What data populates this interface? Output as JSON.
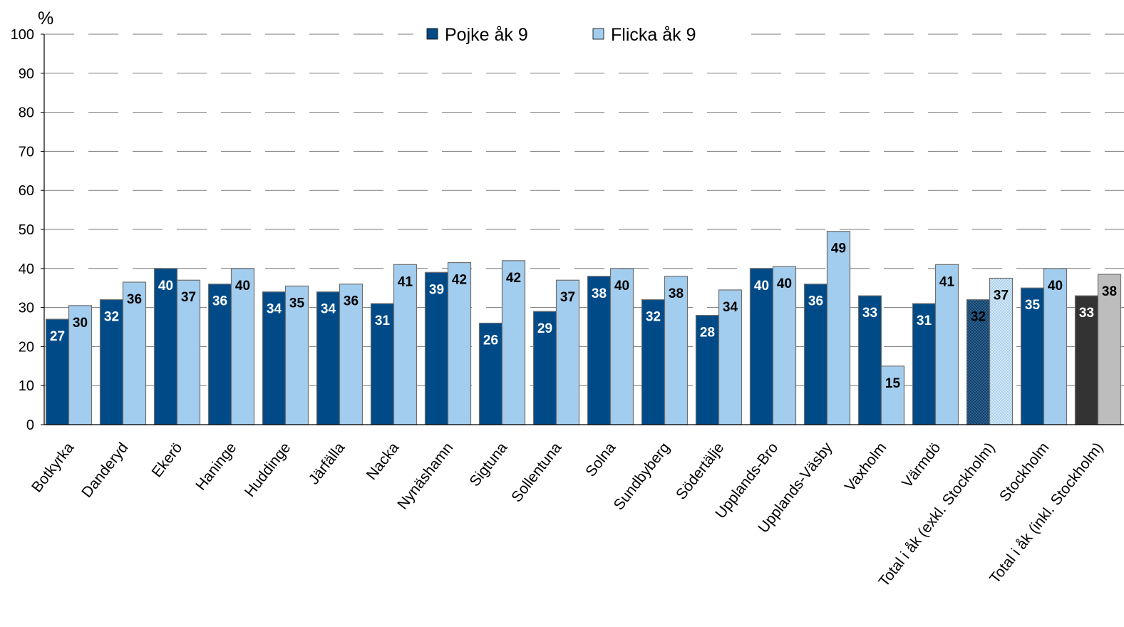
{
  "chart_data": {
    "type": "bar",
    "ylabel": "%",
    "ylim": [
      0,
      100
    ],
    "yticks": [
      0,
      10,
      20,
      30,
      40,
      50,
      60,
      70,
      80,
      90,
      100
    ],
    "grid": true,
    "legend_position": "top-center",
    "categories": [
      "Botkyrka",
      "Danderyd",
      "Ekerö",
      "Haninge",
      "Huddinge",
      "Järfälla",
      "Nacka",
      "Nynäshamn",
      "Sigtuna",
      "Sollentuna",
      "Solna",
      "Sundbyberg",
      "Södertälje",
      "Upplands-Bro",
      "Upplands-Väsby",
      "Vaxholm",
      "Värmdö",
      "Total i åk (exkl. Stockholm)",
      "Stockholm",
      "Total i åk (inkl. Stockholm)"
    ],
    "series": [
      {
        "name": "Pojke åk 9",
        "color": "#004A87",
        "values": [
          27,
          32,
          40,
          36,
          34,
          34,
          31,
          39,
          26,
          29,
          38,
          32,
          28,
          40,
          36,
          33,
          31,
          32,
          35,
          33
        ],
        "labels": [
          "27",
          "32",
          "40",
          "36",
          "34",
          "34",
          "31",
          "39",
          "26",
          "29",
          "38",
          "32",
          "28",
          "40",
          "36",
          "33",
          "31",
          "32",
          "35",
          "33"
        ]
      },
      {
        "name": "Flicka åk 9",
        "color": "#A3CDEE",
        "values": [
          30.5,
          36.5,
          37,
          40,
          35.5,
          36,
          41,
          41.5,
          42,
          37,
          40,
          38,
          34.5,
          40.5,
          49.5,
          15,
          41,
          37.5,
          40,
          38.5
        ],
        "labels": [
          "30",
          "36",
          "37",
          "40",
          "35",
          "36",
          "41",
          "42",
          "42",
          "37",
          "40",
          "38",
          "34",
          "40",
          "49",
          "15",
          "41",
          "37",
          "40",
          "38"
        ]
      }
    ],
    "highlight": {
      "total_exkl_index": 17,
      "total_inkl_index": 19,
      "total_inkl_colors": [
        "#333333",
        "#BDBDBD"
      ]
    }
  }
}
